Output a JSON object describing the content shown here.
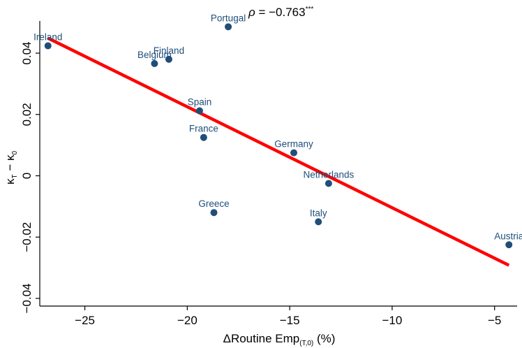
{
  "chart_data": {
    "type": "scatter",
    "annotation": {
      "rho_symbol": "ρ",
      "text": " = −0.763",
      "stars": "***"
    },
    "xlabel": {
      "main": "ΔRoutine Emp",
      "sub": "(T,0)",
      "suffix": " (%)"
    },
    "ylabel": {
      "k1": "κ",
      "sub1": "T",
      "minus": " − ",
      "k2": "κ",
      "sub2": "0"
    },
    "xlim": [
      -27.2,
      -3.9
    ],
    "ylim": [
      -0.0425,
      0.0505
    ],
    "x_ticks": [
      -25,
      -20,
      -15,
      -10,
      -5
    ],
    "x_tick_labels": [
      "−25",
      "−20",
      "−15",
      "−10",
      "−5"
    ],
    "y_ticks": [
      -0.04,
      -0.02,
      0,
      0.02,
      0.04
    ],
    "y_tick_labels": [
      "−0.04",
      "−0.02",
      "0",
      "0.02",
      "0.04"
    ],
    "grid": false,
    "points": [
      {
        "label": "Portugal",
        "x": -18.0,
        "y": 0.0486
      },
      {
        "label": "Ireland",
        "x": -26.8,
        "y": 0.0424
      },
      {
        "label": "Finland",
        "x": -20.9,
        "y": 0.038
      },
      {
        "label": "Belgium",
        "x": -21.6,
        "y": 0.0366
      },
      {
        "label": "Spain",
        "x": -19.4,
        "y": 0.0212
      },
      {
        "label": "France",
        "x": -19.2,
        "y": 0.0125
      },
      {
        "label": "Germany",
        "x": -14.8,
        "y": 0.0075
      },
      {
        "label": "Netherlands",
        "x": -13.1,
        "y": -0.0025
      },
      {
        "label": "Greece",
        "x": -18.7,
        "y": -0.012
      },
      {
        "label": "Italy",
        "x": -13.6,
        "y": -0.015
      },
      {
        "label": "Austria",
        "x": -4.3,
        "y": -0.0225
      }
    ],
    "fit_line": {
      "x": [
        -26.8,
        -4.3
      ],
      "y": [
        0.0449,
        -0.0292
      ]
    },
    "colors": {
      "points": "#1f4e79",
      "fit": "#ff0000",
      "axis": "#000000"
    }
  }
}
